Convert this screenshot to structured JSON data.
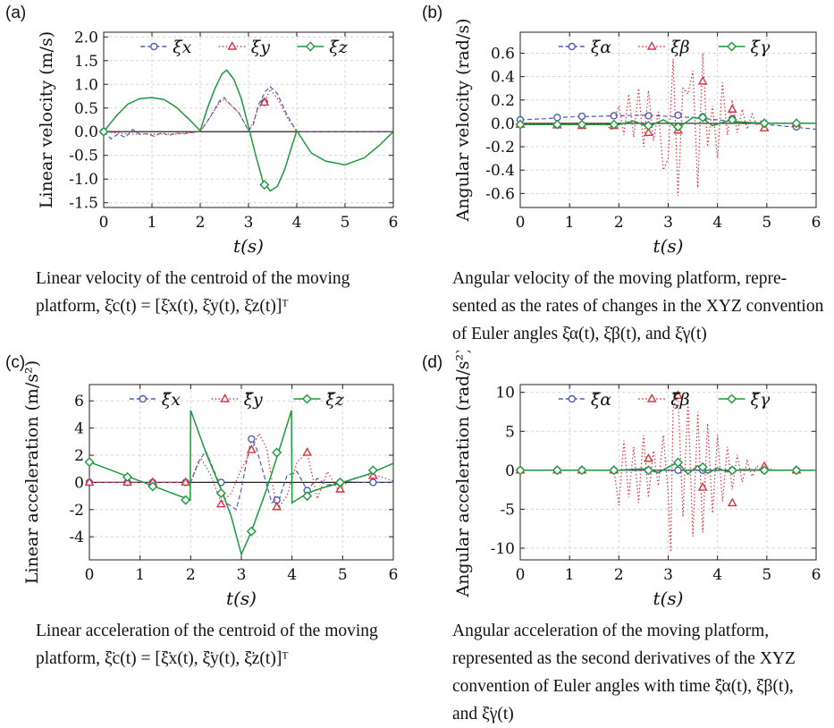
{
  "panels": [
    {
      "tag": "(a)",
      "ylabel": "Linear velocity (m/s)",
      "xlabel": "t(s)",
      "caption": [
        "Linear velocity of the centroid of the moving",
        "platform, ξ̇c(t) = [ξ̇x(t), ξ̇y(t), ξ̇z(t)]ᵀ"
      ]
    },
    {
      "tag": "(b)",
      "ylabel": "Angular velocity (rad/s)",
      "xlabel": "t(s)",
      "caption": [
        "Angular velocity of the moving platform, repre-",
        "sented as the rates of changes in the XYZ convention",
        "of Euler angles ξ̇α(t), ξ̇β(t), and ξ̇γ(t)"
      ]
    },
    {
      "tag": "(c)",
      "ylabel": "Linear acceleration (m/s²)",
      "xlabel": "t(s)",
      "caption": [
        "Linear acceleration of the centroid of the moving",
        "platform, ξ̈c(t) = [ξ̈x(t), ξ̈y(t), ξ̈z(t)]ᵀ"
      ]
    },
    {
      "tag": "(d)",
      "ylabel": "Angular acceleration (rad/s²)",
      "xlabel": "t(s)",
      "caption": [
        "Angular acceleration of the moving platform,",
        "represented as the second derivatives of the XYZ",
        "convention of Euler angles with time ξ̈α(t), ξ̈β(t),",
        "and ξ̈γ(t)"
      ]
    }
  ],
  "colors": {
    "x": "#4a5fb0",
    "y": "#e03040",
    "z": "#1a9a3a"
  },
  "chart_data": [
    {
      "type": "line",
      "xlim": [
        0,
        6
      ],
      "ylim": [
        -1.6,
        2.1
      ],
      "yticks": [
        -1.5,
        -1.0,
        -0.5,
        0.0,
        0.5,
        1.0,
        1.5,
        2.0
      ],
      "ytick_labels": [
        "-1.5",
        "-1.0",
        "-0.5",
        "0.0",
        "0.5",
        "1.0",
        "1.5",
        "2.0"
      ],
      "xticks": [
        0,
        1,
        2,
        3,
        4,
        5,
        6
      ],
      "grid": true,
      "legend": "top",
      "series": [
        {
          "name": "ξ̇x",
          "style": "dashed",
          "marker": "circle",
          "x": [
            0,
            0.15,
            0.3,
            0.45,
            0.6,
            0.75,
            0.9,
            1.05,
            1.2,
            1.35,
            1.5,
            1.65,
            1.8,
            2.0,
            2.2,
            2.4,
            2.5,
            2.6,
            2.8,
            3.0,
            3.1,
            3.2,
            3.35,
            3.45,
            3.6,
            3.8,
            4.0,
            4.5,
            5.0,
            6.0
          ],
          "y": [
            0,
            -0.15,
            -0.05,
            -0.12,
            0.05,
            -0.06,
            -0.04,
            -0.1,
            -0.02,
            -0.08,
            -0.03,
            -0.05,
            -0.02,
            0,
            0.3,
            0.65,
            0.72,
            0.6,
            0.4,
            0.02,
            0.15,
            0.55,
            0.85,
            0.95,
            0.8,
            0.35,
            0,
            0,
            0,
            0
          ],
          "markers_x": [
            0,
            3.33
          ],
          "markers_y": [
            0,
            0.62
          ]
        },
        {
          "name": "ξ̇y",
          "style": "dotted",
          "marker": "triangle",
          "x": [
            0,
            0.5,
            1.0,
            1.5,
            2.0,
            2.2,
            2.4,
            2.5,
            2.6,
            2.8,
            3.0,
            3.1,
            3.2,
            3.33,
            3.45,
            3.6,
            3.8,
            4.0,
            5.0,
            6.0
          ],
          "y": [
            0,
            -0.05,
            -0.05,
            -0.05,
            0,
            0.3,
            0.62,
            0.68,
            0.6,
            0.4,
            0.03,
            0.2,
            0.5,
            0.62,
            0.9,
            0.7,
            0.3,
            0,
            0,
            0
          ],
          "markers_x": [
            3.33
          ],
          "markers_y": [
            0.62
          ]
        },
        {
          "name": "ξ̇z",
          "style": "solid",
          "marker": "diamond",
          "x": [
            0,
            0.25,
            0.5,
            0.75,
            1.0,
            1.25,
            1.5,
            1.75,
            2.0,
            2.15,
            2.3,
            2.45,
            2.55,
            2.7,
            2.85,
            3.0,
            3.15,
            3.3,
            3.45,
            3.6,
            3.75,
            3.9,
            4.0,
            4.3,
            4.6,
            5.0,
            5.4,
            5.7,
            6.0
          ],
          "y": [
            0,
            0.32,
            0.58,
            0.7,
            0.72,
            0.68,
            0.52,
            0.28,
            0.02,
            0.5,
            0.9,
            1.22,
            1.3,
            1.1,
            0.7,
            0.1,
            -0.5,
            -1.05,
            -1.25,
            -1.15,
            -0.8,
            -0.3,
            0.02,
            -0.45,
            -0.62,
            -0.7,
            -0.55,
            -0.3,
            0
          ],
          "markers_x": [
            0,
            3.33
          ],
          "markers_y": [
            0,
            -1.12
          ]
        }
      ]
    },
    {
      "type": "line",
      "xlim": [
        0,
        6
      ],
      "ylim": [
        -0.72,
        0.78
      ],
      "yticks": [
        -0.6,
        -0.4,
        -0.2,
        0.0,
        0.2,
        0.4,
        0.6
      ],
      "ytick_labels": [
        "-0.6",
        "-0.4",
        "-0.2",
        "0.0",
        "0.2",
        "0.4",
        "0.6"
      ],
      "xticks": [
        0,
        1,
        2,
        3,
        4,
        5,
        6
      ],
      "grid": true,
      "legend": "top",
      "series": [
        {
          "name": "ξ̇α",
          "style": "dashed",
          "marker": "circle",
          "x": [
            0,
            0.5,
            1.0,
            1.5,
            2.0,
            2.5,
            3.0,
            3.5,
            4.0,
            4.5,
            5.0,
            5.5,
            6.0
          ],
          "y": [
            0.03,
            0.04,
            0.055,
            0.06,
            0.065,
            0.07,
            0.06,
            0.05,
            0.03,
            0.01,
            -0.01,
            -0.03,
            -0.05
          ],
          "markers_x": [
            0,
            0.75,
            1.25,
            1.9,
            2.6,
            3.2,
            3.7,
            4.3,
            4.95,
            5.6
          ],
          "markers_y": [
            0.03,
            0.05,
            0.06,
            0.065,
            0.065,
            0.07,
            0.055,
            0.04,
            0.0,
            -0.03
          ]
        },
        {
          "name": "ξ̇β",
          "style": "dotted",
          "marker": "triangle",
          "x": [
            0,
            1.0,
            1.7,
            1.85,
            2.0,
            2.1,
            2.2,
            2.3,
            2.4,
            2.5,
            2.6,
            2.7,
            2.8,
            2.9,
            3.0,
            3.1,
            3.2,
            3.3,
            3.4,
            3.5,
            3.6,
            3.7,
            3.8,
            3.9,
            4.0,
            4.1,
            4.2,
            4.3,
            4.4,
            4.5,
            4.6,
            4.7,
            4.8,
            4.9,
            5.0,
            5.5,
            6.0
          ],
          "y": [
            0,
            0,
            0,
            -0.05,
            0.15,
            -0.1,
            0.25,
            -0.12,
            0.3,
            -0.2,
            0.28,
            -0.15,
            0.1,
            -0.4,
            -0.3,
            0.55,
            -0.62,
            0.3,
            0.25,
            0.45,
            -0.55,
            0.6,
            -0.2,
            0.15,
            -0.3,
            0.35,
            -0.1,
            0.2,
            -0.08,
            0.12,
            -0.05,
            0.08,
            -0.02,
            0.03,
            0,
            0,
            0
          ],
          "markers_x": [
            0,
            0.75,
            1.25,
            1.9,
            2.6,
            3.2,
            3.7,
            4.3,
            4.95,
            5.6
          ],
          "markers_y": [
            -0.01,
            -0.015,
            -0.02,
            -0.02,
            -0.08,
            -0.06,
            0.36,
            0.12,
            -0.04,
            0.0
          ]
        },
        {
          "name": "ξ̇γ",
          "style": "solid",
          "marker": "diamond",
          "x": [
            0,
            1.0,
            2.0,
            2.3,
            2.6,
            2.9,
            3.2,
            3.5,
            3.7,
            3.9,
            4.2,
            4.5,
            5.0,
            6.0
          ],
          "y": [
            -0.01,
            -0.01,
            -0.01,
            0.02,
            -0.03,
            0.03,
            -0.04,
            0.05,
            0.04,
            -0.02,
            0.02,
            0.01,
            0.0,
            0.0
          ],
          "markers_x": [
            0,
            0.75,
            1.25,
            1.9,
            2.6,
            3.2,
            3.7,
            4.3,
            4.95,
            5.6
          ],
          "markers_y": [
            -0.01,
            -0.01,
            -0.01,
            -0.01,
            -0.02,
            -0.03,
            0.05,
            0.03,
            0.0,
            0.0
          ]
        }
      ]
    },
    {
      "type": "line",
      "xlim": [
        0,
        6
      ],
      "ylim": [
        -5.7,
        7.2
      ],
      "yticks": [
        -4,
        -2,
        0,
        2,
        4,
        6
      ],
      "ytick_labels": [
        "-4",
        "-2",
        "0",
        "2",
        "4",
        "6"
      ],
      "xticks": [
        0,
        1,
        2,
        3,
        4,
        5,
        6
      ],
      "grid": true,
      "legend": "top",
      "series": [
        {
          "name": "ξ̈x",
          "style": "dashed",
          "marker": "circle",
          "x": [
            0,
            1.0,
            2.0,
            2.15,
            2.3,
            2.5,
            2.7,
            2.9,
            3.0,
            3.1,
            3.2,
            3.3,
            3.45,
            3.6,
            3.75,
            3.9,
            4.1,
            4.3,
            4.5,
            4.7,
            5.0,
            5.5,
            6.0
          ],
          "y": [
            0,
            0,
            0,
            1.5,
            2.3,
            0.5,
            -1.5,
            -2.0,
            -0.5,
            1.5,
            3.2,
            2.5,
            0.5,
            -1.5,
            -1.2,
            0.5,
            0.8,
            -0.6,
            0.3,
            -0.2,
            0.05,
            0,
            0
          ],
          "markers_x": [
            0,
            0.75,
            1.25,
            1.9,
            2.6,
            3.2,
            3.7,
            4.3,
            4.95,
            5.6
          ],
          "markers_y": [
            0,
            0,
            0,
            0,
            0,
            3.2,
            -1.3,
            -0.6,
            0,
            0
          ]
        },
        {
          "name": "ξ̈y",
          "style": "dotted",
          "marker": "triangle",
          "x": [
            0,
            1.0,
            2.0,
            2.2,
            2.4,
            2.6,
            2.8,
            3.0,
            3.2,
            3.35,
            3.5,
            3.7,
            3.9,
            4.1,
            4.3,
            4.5,
            4.7,
            4.9,
            5.2,
            5.6,
            6.0
          ],
          "y": [
            0,
            0,
            0,
            1.8,
            0.5,
            -1.5,
            -0.8,
            1.0,
            2.4,
            3.6,
            2.5,
            -2.0,
            -1.0,
            1.5,
            2.2,
            -1.2,
            0.8,
            -0.5,
            0.3,
            0.6,
            0.1
          ],
          "markers_x": [
            0,
            0.75,
            1.25,
            1.9,
            2.6,
            3.2,
            3.7,
            4.3,
            4.95,
            5.6
          ],
          "markers_y": [
            0,
            0,
            0,
            0,
            -1.6,
            2.4,
            -1.8,
            2.2,
            -0.5,
            0.5
          ]
        },
        {
          "name": "ξ̈z",
          "style": "solid",
          "marker": "diamond",
          "x": [
            0,
            1.0,
            1.99,
            2.0,
            2.3,
            2.6,
            2.8,
            3.0,
            3.2,
            3.5,
            3.8,
            3.99,
            4.0,
            4.3,
            4.6,
            5.0,
            5.5,
            6.0
          ],
          "y": [
            1.5,
            0.1,
            -1.3,
            5.3,
            2.2,
            -0.5,
            -2.5,
            -5.3,
            -3.6,
            -0.5,
            3.0,
            5.3,
            -1.5,
            -0.8,
            -0.4,
            0.0,
            0.6,
            1.4
          ],
          "markers_x": [
            0,
            0.75,
            1.25,
            1.9,
            2.6,
            3.2,
            3.7,
            4.3,
            4.95,
            5.6
          ],
          "markers_y": [
            1.5,
            0.4,
            -0.3,
            -1.3,
            -0.8,
            -3.6,
            2.2,
            -1.0,
            0.0,
            0.9
          ]
        }
      ]
    },
    {
      "type": "line",
      "xlim": [
        0,
        6
      ],
      "ylim": [
        -11.5,
        11
      ],
      "yticks": [
        -10,
        -5,
        0,
        5,
        10
      ],
      "ytick_labels": [
        "-10",
        "-5",
        "0",
        "5",
        "10"
      ],
      "xticks": [
        0,
        1,
        2,
        3,
        4,
        5,
        6
      ],
      "grid": true,
      "legend": "top",
      "series": [
        {
          "name": "ξ̈α",
          "style": "dashed",
          "marker": "circle",
          "x": [
            0,
            2.0,
            3.0,
            4.0,
            5.0,
            6.0
          ],
          "y": [
            0,
            0,
            0,
            0,
            0,
            0
          ],
          "markers_x": [
            0,
            0.75,
            1.25,
            1.9,
            2.6,
            3.2,
            3.7,
            4.3,
            4.95,
            5.6
          ],
          "markers_y": [
            0,
            0,
            0,
            0,
            0,
            0,
            0,
            0,
            0,
            0
          ]
        },
        {
          "name": "ξ̈β",
          "style": "dotted",
          "marker": "triangle",
          "x": [
            0,
            1.9,
            2.0,
            2.1,
            2.2,
            2.3,
            2.4,
            2.5,
            2.6,
            2.7,
            2.8,
            2.9,
            3.0,
            3.05,
            3.1,
            3.2,
            3.3,
            3.4,
            3.5,
            3.6,
            3.7,
            3.8,
            3.9,
            4.0,
            4.1,
            4.2,
            4.3,
            4.4,
            4.5,
            4.6,
            4.7,
            4.8,
            4.9,
            5.0,
            5.2,
            6.0
          ],
          "y": [
            0,
            0,
            -4.5,
            3.8,
            -3.5,
            3.0,
            -4.2,
            4.5,
            -3.5,
            2.5,
            -2.0,
            4.5,
            -3.0,
            -10.5,
            8.0,
            9.8,
            -6.0,
            9.0,
            -8.5,
            7.5,
            -8.0,
            6.0,
            -5.5,
            4.5,
            -4.0,
            3.0,
            -2.5,
            2.0,
            -1.5,
            1.2,
            -0.8,
            0.6,
            -0.3,
            0.2,
            0,
            0
          ],
          "markers_x": [
            0,
            0.75,
            1.25,
            1.9,
            2.6,
            3.2,
            3.7,
            4.3,
            4.95,
            5.6
          ],
          "markers_y": [
            0,
            0,
            0,
            0,
            1.5,
            9.6,
            -2.2,
            -4.2,
            0.5,
            0
          ]
        },
        {
          "name": "ξ̈γ",
          "style": "solid",
          "marker": "diamond",
          "x": [
            0,
            2.0,
            2.5,
            2.8,
            3.0,
            3.2,
            3.4,
            3.6,
            3.8,
            4.0,
            4.2,
            4.5,
            5.0,
            6.0
          ],
          "y": [
            0,
            0,
            0.2,
            -0.3,
            0.4,
            1.0,
            -0.5,
            0.6,
            -0.4,
            0.3,
            -0.2,
            0.1,
            0,
            0
          ],
          "markers_x": [
            0,
            0.75,
            1.25,
            1.9,
            2.6,
            3.2,
            3.7,
            4.3,
            4.95,
            5.6
          ],
          "markers_y": [
            0,
            0,
            0,
            0,
            0,
            1.0,
            0.4,
            0,
            0,
            0
          ]
        }
      ]
    }
  ]
}
